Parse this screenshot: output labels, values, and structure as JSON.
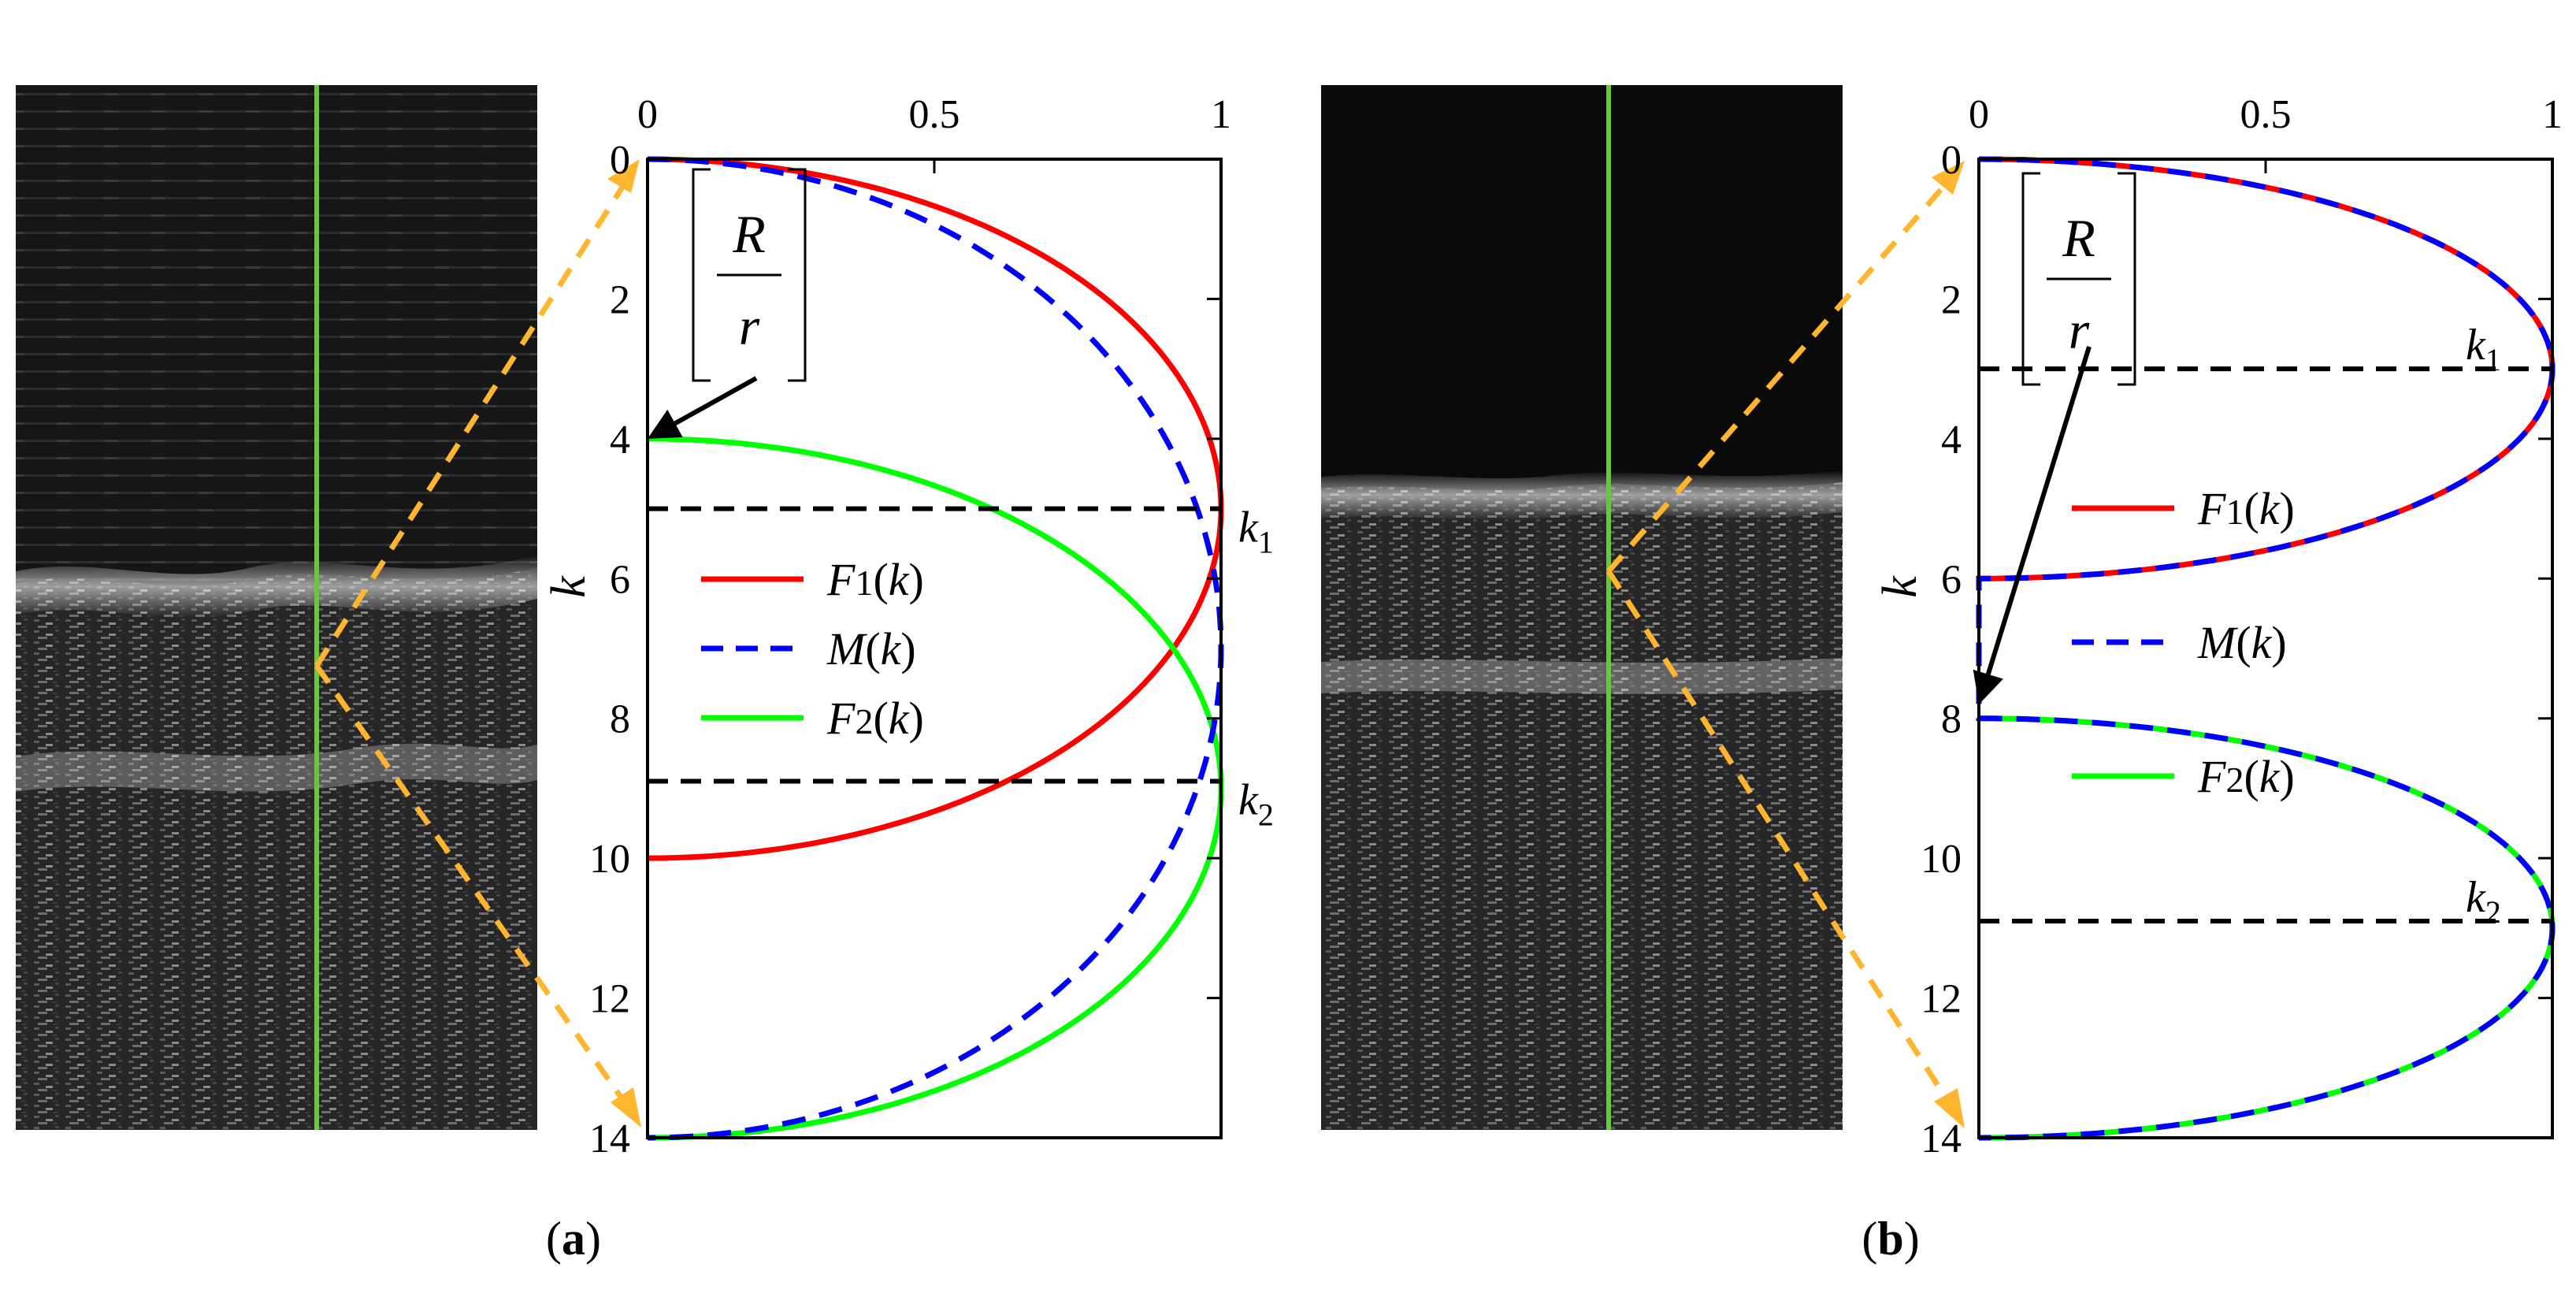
{
  "figure": {
    "panels": [
      {
        "id": "a",
        "label": "a"
      },
      {
        "id": "b",
        "label": "b"
      }
    ],
    "ratio_label": {
      "numerator": "R",
      "denominator": "r"
    },
    "colors": {
      "F1": "#ff0000",
      "M": "#0000ff",
      "F2": "#00ff00",
      "threshold": "#000000",
      "projection": "#ffb52e",
      "scanline": "#66c83c"
    }
  },
  "chart_data": [
    {
      "panel": "a",
      "type": "line",
      "x": [
        0,
        0.5,
        1
      ],
      "xticks": [
        "0",
        "0.5",
        "1"
      ],
      "yticks": [
        "0",
        "2",
        "4",
        "6",
        "8",
        "10",
        "12",
        "14"
      ],
      "xlim": [
        0,
        1
      ],
      "ylim": [
        0,
        14
      ],
      "ylabel": "k",
      "y_inverted": true,
      "series": [
        {
          "name": "F1(k)",
          "key": "F1",
          "base": "F",
          "sub": "1",
          "arg": "(k)",
          "style": "solid",
          "center": 5,
          "top": 0,
          "bottom": 10
        },
        {
          "name": "M(k)",
          "key": "M",
          "base": "M",
          "sub": "",
          "arg": "(k)",
          "style": "dashed",
          "center": 7,
          "top": 0,
          "bottom": 14
        },
        {
          "name": "F2(k)",
          "key": "F2",
          "base": "F",
          "sub": "2",
          "arg": "(k)",
          "style": "solid",
          "center": 9,
          "top": 4,
          "bottom": 14
        }
      ],
      "thresholds": [
        {
          "label": "k",
          "sub": "1",
          "y": 5
        },
        {
          "label": "k",
          "sub": "2",
          "y": 8.9
        }
      ],
      "annotation": {
        "text": "[R/r]",
        "points_to": {
          "x": 0,
          "y": 4
        }
      }
    },
    {
      "panel": "b",
      "type": "line",
      "x": [
        0,
        0.5,
        1
      ],
      "xticks": [
        "0",
        "0.5",
        "1"
      ],
      "yticks": [
        "0",
        "2",
        "4",
        "6",
        "8",
        "10",
        "12",
        "14"
      ],
      "xlim": [
        0,
        1
      ],
      "ylim": [
        0,
        14
      ],
      "ylabel": "k",
      "y_inverted": true,
      "series": [
        {
          "name": "F1(k)",
          "key": "F1",
          "base": "F",
          "sub": "1",
          "arg": "(k)",
          "style": "solid",
          "center": 3,
          "top": 0,
          "bottom": 6
        },
        {
          "name": "M(k)",
          "key": "M",
          "base": "M",
          "sub": "",
          "arg": "(k)",
          "style": "dashed",
          "note": "M(k) follows F1(k) for k in [0,6], F2(k) for k in [8,14], and x=0 between"
        },
        {
          "name": "F2(k)",
          "key": "F2",
          "base": "F",
          "sub": "2",
          "arg": "(k)",
          "style": "solid",
          "center": 11,
          "top": 8,
          "bottom": 14
        }
      ],
      "thresholds": [
        {
          "label": "k",
          "sub": "1",
          "y": 3
        },
        {
          "label": "k",
          "sub": "2",
          "y": 10.9
        }
      ],
      "annotation": {
        "text": "[R/r]",
        "points_to": {
          "x": 0,
          "y": 7.8
        }
      }
    }
  ]
}
